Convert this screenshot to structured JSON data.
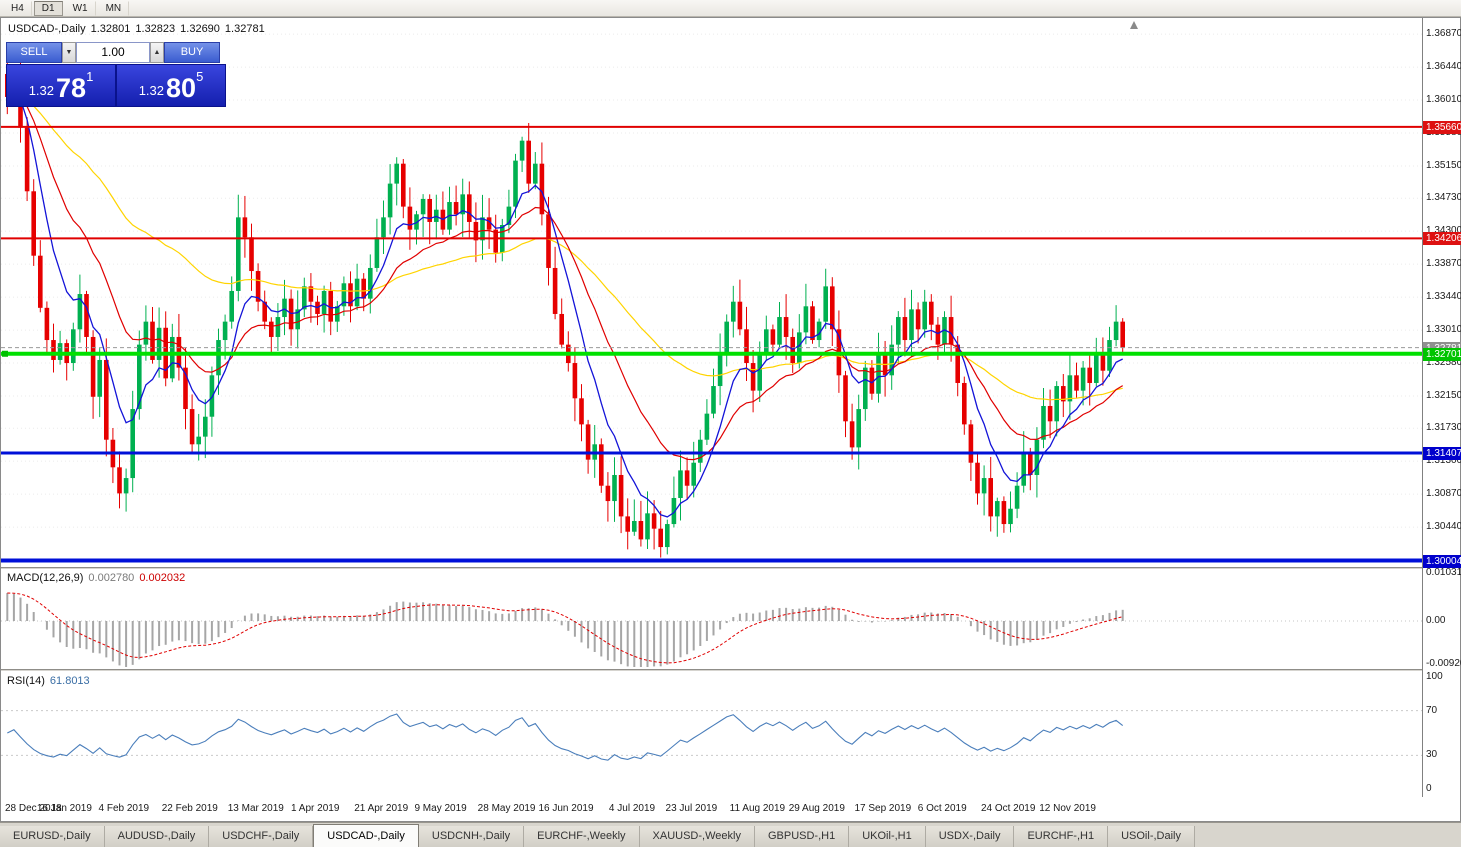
{
  "toolbar": {
    "timeframes": [
      "H4",
      "D1",
      "W1",
      "MN"
    ],
    "active": "D1"
  },
  "chart_header": {
    "symbol_tf": "USDCAD-,Daily",
    "open": "1.32801",
    "high": "1.32823",
    "low": "1.32690",
    "close": "1.32781"
  },
  "trade_panel": {
    "sell_label": "SELL",
    "buy_label": "BUY",
    "volume": "1.00",
    "spin_down_glyph": "▼",
    "spin_up_glyph": "▲",
    "sell_price_small": "1.32",
    "sell_price_big": "78",
    "sell_price_sup": "1",
    "buy_price_small": "1.32",
    "buy_price_big": "80",
    "buy_price_sup": "5"
  },
  "price_axis": {
    "ticks": [
      "1.36870",
      "1.36440",
      "1.36010",
      "1.35580",
      "1.35150",
      "1.34730",
      "1.34300",
      "1.33870",
      "1.33440",
      "1.33010",
      "1.32580",
      "1.32150",
      "1.31730",
      "1.31300",
      "1.30870",
      "1.30440"
    ],
    "line_labels": [
      {
        "value": "1.35660",
        "price": 1.3566,
        "color": "#dd1111"
      },
      {
        "value": "1.34206",
        "price": 1.34206,
        "color": "#dd1111"
      },
      {
        "value": "1.32781",
        "price": 1.32781,
        "color": "#8f8f8f"
      },
      {
        "value": "1.32701",
        "price": 1.32701,
        "color": "#00c400"
      },
      {
        "value": "1.31407",
        "price": 1.31407,
        "color": "#0000cc"
      },
      {
        "value": "1.30004",
        "price": 1.30004,
        "color": "#0000cc"
      }
    ]
  },
  "indicators": {
    "macd": {
      "name": "MACD(12,26,9)",
      "v1": "0.002780",
      "v2": "0.002032",
      "axis": [
        "0.010311",
        "0.00",
        "-0.00920"
      ]
    },
    "rsi": {
      "name": "RSI(14)",
      "value": "61.8013",
      "axis": [
        "100",
        "70",
        "30",
        "0"
      ]
    }
  },
  "tabs": [
    "EURUSD-,Daily",
    "AUDUSD-,Daily",
    "USDCHF-,Daily",
    "USDCAD-,Daily",
    "USDCNH-,Daily",
    "EURCHF-,Weekly",
    "XAUUSD-,Weekly",
    "GBPUSD-,H1",
    "UKOil-,H1",
    "USDX-,Daily",
    "EURCHF-,H1",
    "USOil-,Daily"
  ],
  "active_tab_index": 3,
  "chart_data": {
    "type": "candlestick",
    "symbol": "USDCAD",
    "timeframe": "Daily",
    "price_range": [
      1.2992,
      1.3708
    ],
    "colors": {
      "up": "#00b050",
      "down": "#e60000",
      "ma_fast": "#1414d8",
      "ma_mid": "#e00000",
      "ma_slow": "#ffd400",
      "macd_hist": "#a6a6a6",
      "macd_signal": "#e00000",
      "rsi_line": "#4a7ebb"
    },
    "hlines": [
      {
        "price": 1.3566,
        "color": "#e00000",
        "width": 2
      },
      {
        "price": 1.34206,
        "color": "#e00000",
        "width": 2
      },
      {
        "price": 1.32701,
        "color": "#00e000",
        "width": 4
      },
      {
        "price": 1.31407,
        "color": "#0010d8",
        "width": 3
      },
      {
        "price": 1.30004,
        "color": "#0010d8",
        "width": 4
      }
    ],
    "current_price": 1.32781,
    "dates": [
      "28 Dec 2018",
      "16 Jan 2019",
      "4 Feb 2019",
      "22 Feb 2019",
      "13 Mar 2019",
      "1 Apr 2019",
      "21 Apr 2019",
      "9 May 2019",
      "28 May 2019",
      "16 Jun 2019",
      "4 Jul 2019",
      "23 Jul 2019",
      "11 Aug 2019",
      "29 Aug 2019",
      "17 Sep 2019",
      "6 Oct 2019",
      "24 Oct 2019",
      "12 Nov 2019"
    ],
    "date_indices": [
      0,
      9,
      18,
      28,
      38,
      47,
      57,
      66,
      76,
      85,
      95,
      104,
      114,
      123,
      133,
      142,
      152,
      161
    ],
    "ma_periods": [
      8,
      20,
      55
    ],
    "macd_params": [
      12,
      26,
      9
    ],
    "rsi_period": 14,
    "closes": [
      1.3605,
      1.3638,
      1.3565,
      1.3482,
      1.3398,
      1.333,
      1.3288,
      1.3262,
      1.3284,
      1.3258,
      1.3302,
      1.3348,
      1.3292,
      1.3214,
      1.3262,
      1.3158,
      1.3122,
      1.3088,
      1.3108,
      1.3198,
      1.3282,
      1.3312,
      1.3262,
      1.3304,
      1.3238,
      1.3292,
      1.3252,
      1.3198,
      1.3152,
      1.3162,
      1.3188,
      1.3242,
      1.3288,
      1.3312,
      1.3352,
      1.3448,
      1.3422,
      1.3378,
      1.3338,
      1.3312,
      1.3292,
      1.3318,
      1.3342,
      1.3302,
      1.3328,
      1.3358,
      1.3338,
      1.3322,
      1.3352,
      1.3312,
      1.3332,
      1.3362,
      1.3332,
      1.3368,
      1.3342,
      1.3382,
      1.3422,
      1.3448,
      1.3492,
      1.3518,
      1.3462,
      1.3432,
      1.3452,
      1.3472,
      1.3442,
      1.3458,
      1.3432,
      1.3468,
      1.3452,
      1.3478,
      1.3442,
      1.3418,
      1.3448,
      1.3432,
      1.3402,
      1.3438,
      1.3462,
      1.3522,
      1.3548,
      1.3492,
      1.3518,
      1.3452,
      1.3382,
      1.3322,
      1.3282,
      1.3258,
      1.3212,
      1.3178,
      1.3132,
      1.3152,
      1.3098,
      1.3078,
      1.3112,
      1.3058,
      1.3038,
      1.3052,
      1.3028,
      1.3062,
      1.3042,
      1.3018,
      1.3048,
      1.3082,
      1.3118,
      1.3098,
      1.3128,
      1.3158,
      1.3192,
      1.3228,
      1.3268,
      1.3312,
      1.3338,
      1.3302,
      1.3258,
      1.3222,
      1.3268,
      1.3302,
      1.3282,
      1.3318,
      1.3292,
      1.3258,
      1.3298,
      1.3332,
      1.3288,
      1.3312,
      1.3358,
      1.3302,
      1.3242,
      1.3182,
      1.3148,
      1.3198,
      1.3252,
      1.3218,
      1.3268,
      1.3242,
      1.3282,
      1.3318,
      1.3288,
      1.3328,
      1.3302,
      1.3338,
      1.3308,
      1.3282,
      1.3318,
      1.3282,
      1.3232,
      1.3178,
      1.3128,
      1.3088,
      1.3108,
      1.3058,
      1.3078,
      1.3048,
      1.3068,
      1.3098,
      1.3142,
      1.3112,
      1.3158,
      1.3202,
      1.3182,
      1.3228,
      1.3208,
      1.3242,
      1.3222,
      1.3252,
      1.3232,
      1.3268,
      1.3248,
      1.3288,
      1.3312,
      1.3278
    ]
  }
}
